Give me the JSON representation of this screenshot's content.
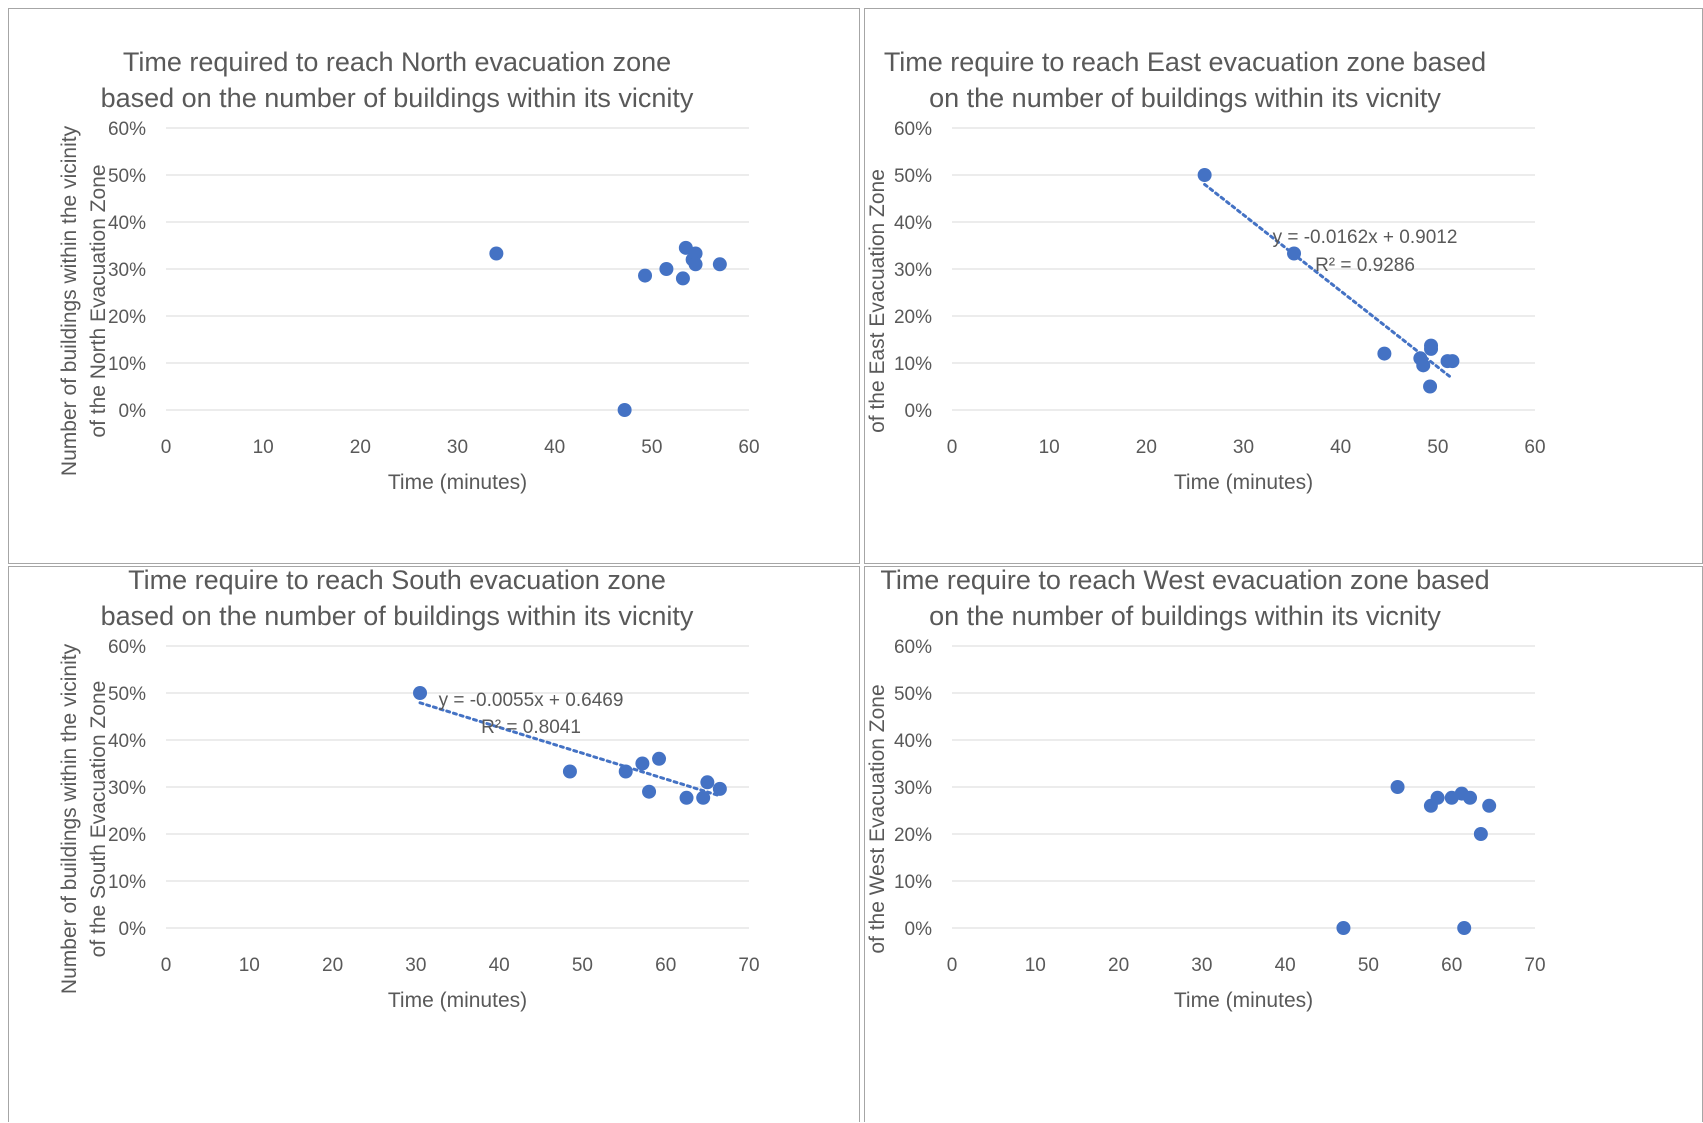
{
  "chart_data": [
    {
      "type": "scatter",
      "title": [
        "Time required to reach North evacuation zone",
        "based on the number of buildings within its vicnity"
      ],
      "xlabel": "Time (minutes)",
      "ylabel": [
        "Number of buildings within the vicinity",
        "of the North Evacuation Zone"
      ],
      "xlim": [
        0,
        60
      ],
      "xticks": [
        0,
        10,
        20,
        30,
        40,
        50,
        60
      ],
      "ylim": [
        0,
        0.6
      ],
      "yticks": [
        0,
        0.1,
        0.2,
        0.3,
        0.4,
        0.5,
        0.6
      ],
      "ytick_labels": [
        "0%",
        "10%",
        "20%",
        "30%",
        "40%",
        "50%",
        "60%"
      ],
      "grid": true,
      "marker_color": "#4472c4",
      "points": [
        [
          34,
          0.333
        ],
        [
          47.2,
          0.0
        ],
        [
          49.3,
          0.286
        ],
        [
          51.5,
          0.3
        ],
        [
          53.2,
          0.28
        ],
        [
          53.5,
          0.345
        ],
        [
          54.2,
          0.32
        ],
        [
          54.5,
          0.333
        ],
        [
          54.5,
          0.31
        ],
        [
          57.0,
          0.31
        ]
      ]
    },
    {
      "type": "scatter",
      "title": [
        "Time require to reach East evacuation zone based",
        "on the number of buildings within its vicnity"
      ],
      "xlabel": "Time (minutes)",
      "ylabel": [
        "Number of buildings within the vicinity",
        "of the East Evacuation Zone"
      ],
      "xlim": [
        0,
        60
      ],
      "xticks": [
        0,
        10,
        20,
        30,
        40,
        50,
        60
      ],
      "ylim": [
        0,
        0.6
      ],
      "yticks": [
        0,
        0.1,
        0.2,
        0.3,
        0.4,
        0.5,
        0.6
      ],
      "ytick_labels": [
        "0%",
        "10%",
        "20%",
        "30%",
        "40%",
        "50%",
        "60%"
      ],
      "grid": true,
      "marker_color": "#4472c4",
      "points": [
        [
          26,
          0.5
        ],
        [
          35.2,
          0.333
        ],
        [
          44.5,
          0.12
        ],
        [
          48.2,
          0.11
        ],
        [
          48.5,
          0.095
        ],
        [
          49.2,
          0.05
        ],
        [
          49.3,
          0.13
        ],
        [
          49.3,
          0.137
        ],
        [
          51.0,
          0.104
        ],
        [
          51.5,
          0.104
        ]
      ],
      "trendline": {
        "type": "linear",
        "slope": -0.0162,
        "intercept": 0.9012,
        "x_range": [
          26,
          51.5
        ],
        "equation": "y = -0.0162x + 0.9012",
        "r_squared": "R² = 0.9286"
      }
    },
    {
      "type": "scatter",
      "title": [
        "Time require to reach South evacuation zone",
        "based on the number of buildings within its vicnity"
      ],
      "xlabel": "Time (minutes)",
      "ylabel": [
        "Number of buildings within the vicinity",
        "of the South Evacuation Zone"
      ],
      "xlim": [
        0,
        70
      ],
      "xticks": [
        0,
        10,
        20,
        30,
        40,
        50,
        60,
        70
      ],
      "ylim": [
        0,
        0.6
      ],
      "yticks": [
        0,
        0.1,
        0.2,
        0.3,
        0.4,
        0.5,
        0.6
      ],
      "ytick_labels": [
        "0%",
        "10%",
        "20%",
        "30%",
        "40%",
        "50%",
        "60%"
      ],
      "grid": true,
      "marker_color": "#4472c4",
      "points": [
        [
          30.5,
          0.5
        ],
        [
          48.5,
          0.333
        ],
        [
          55.2,
          0.333
        ],
        [
          57.2,
          0.35
        ],
        [
          58,
          0.29
        ],
        [
          59.2,
          0.36
        ],
        [
          62.5,
          0.277
        ],
        [
          64.5,
          0.277
        ],
        [
          65,
          0.31
        ],
        [
          66.5,
          0.296
        ]
      ],
      "trendline": {
        "type": "linear",
        "slope": -0.0055,
        "intercept": 0.6469,
        "x_range": [
          30.5,
          66.5
        ],
        "equation": "y = -0.0055x + 0.6469",
        "r_squared": "R² = 0.8041"
      }
    },
    {
      "type": "scatter",
      "title": [
        "Time require to reach West evacuation zone based",
        "on the number of buildings within its vicnity"
      ],
      "xlabel": "Time (minutes)",
      "ylabel": [
        "Number of buildings within the vicinity",
        "of the West Evacuation Zone"
      ],
      "xlim": [
        0,
        70
      ],
      "xticks": [
        0,
        10,
        20,
        30,
        40,
        50,
        60,
        70
      ],
      "ylim": [
        0,
        0.6
      ],
      "yticks": [
        0,
        0.1,
        0.2,
        0.3,
        0.4,
        0.5,
        0.6
      ],
      "ytick_labels": [
        "0%",
        "10%",
        "20%",
        "30%",
        "40%",
        "50%",
        "60%"
      ],
      "grid": true,
      "marker_color": "#4472c4",
      "points": [
        [
          47,
          0.0
        ],
        [
          53.5,
          0.3
        ],
        [
          57.5,
          0.26
        ],
        [
          58.3,
          0.277
        ],
        [
          60,
          0.277
        ],
        [
          61.2,
          0.286
        ],
        [
          61.5,
          0.0
        ],
        [
          62.2,
          0.277
        ],
        [
          63.5,
          0.2
        ],
        [
          64.5,
          0.26
        ]
      ]
    }
  ]
}
